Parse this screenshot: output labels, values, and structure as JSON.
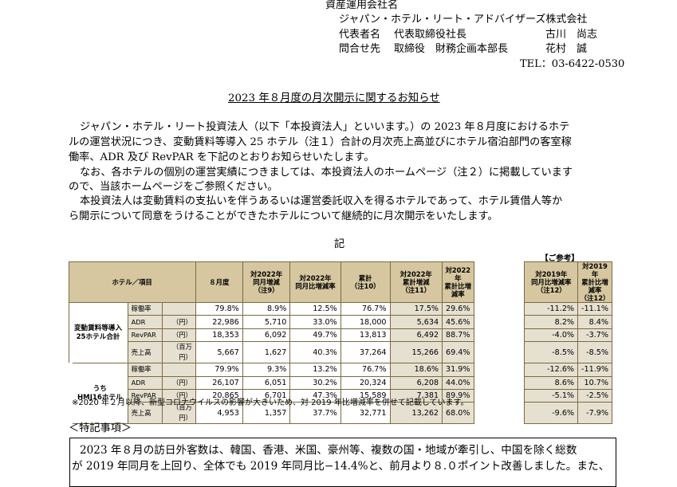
{
  "header": {
    "asset_manager_label": "資産運用会社名",
    "asset_manager_name": "ジャパン・ホテル・リート・アドバイザーズ株式会社",
    "representative_label": "代表者名",
    "representative_title": "代表取締役社長",
    "representative_name": "古川　尚志",
    "contact_label": "問合せ先",
    "contact_title": "取締役　財務企画本部長",
    "contact_name": "花村　誠",
    "tel": "TEL：03-6422-0530"
  },
  "title": "2023 年８月度の月次開示に関するお知らせ",
  "paragraphs": {
    "p1_line1": "ジャパン・ホテル・リート投資法人（以下「本投資法人」といいます。）の 2023 年８月度におけるホテ",
    "p1_line2": "ルの運営状況につき、変動賃料等導入 25 ホテル（注１）合計の月次売上高並びにホテル宿泊部門の客室稼",
    "p1_line3": "働率、ADR 及び RevPAR を下記のとおりお知らせいたします。",
    "p2_line1": "なお、各ホテルの個別の運営実績につきましては、本投資法人のホームページ（注２）に掲載しています",
    "p2_line2": "ので、当該ホームページをご参照ください。",
    "p3_line1": "本投資法人は変動賃料の支払いを伴うあるいは運営委託収入を得るホテルであって、ホテル賃借人等か",
    "p3_line2": "ら開示について同意をうけることができたホテルについて継続的に月次開示をいたします。"
  },
  "ki": "記",
  "reference_label": "【ご参考】",
  "table": {
    "headers": {
      "hotel_item": "ホテル／項目",
      "month": "８月度",
      "yoy_change": "対2022年\n同月増減\n（注9）",
      "yoy_rate": "対2022年\n同月比増減率",
      "cumulative": "累計\n（注10）",
      "cum_change": "対2022年\n累計増減\n（注11）",
      "cum_rate": "対2022年\n累計比増減率",
      "vs2019_month": "対2019年\n同月比増減率\n（注12）",
      "vs2019_cum": "対2019年\n累計比増減率\n（注12）"
    },
    "group1": "変動賃料等導入\n25ホテル合計",
    "group2": "うち\nHMJ16ホテル",
    "rows1": [
      {
        "item": "稼働率",
        "unit": "",
        "month": "79.8%",
        "yoy": "8.9%",
        "yoy_rate": "12.5%",
        "cum": "76.7%",
        "cum_chg": "17.5%",
        "cum_rate": "29.6%",
        "m19": "-11.2%",
        "c19": "-11.1%"
      },
      {
        "item": "ADR",
        "unit": "（円）",
        "month": "22,986",
        "yoy": "5,710",
        "yoy_rate": "33.0%",
        "cum": "18,000",
        "cum_chg": "5,634",
        "cum_rate": "45.6%",
        "m19": "8.2%",
        "c19": "8.4%"
      },
      {
        "item": "RevPAR",
        "unit": "（円）",
        "month": "18,353",
        "yoy": "6,092",
        "yoy_rate": "49.7%",
        "cum": "13,813",
        "cum_chg": "6,492",
        "cum_rate": "88.7%",
        "m19": "-4.0%",
        "c19": "-3.7%"
      },
      {
        "item": "売上高",
        "unit": "（百万円）",
        "month": "5,667",
        "yoy": "1,627",
        "yoy_rate": "40.3%",
        "cum": "37,264",
        "cum_chg": "15,266",
        "cum_rate": "69.4%",
        "m19": "-8.5%",
        "c19": "-8.5%"
      }
    ],
    "rows2": [
      {
        "item": "稼働率",
        "unit": "",
        "month": "79.9%",
        "yoy": "9.3%",
        "yoy_rate": "13.2%",
        "cum": "76.7%",
        "cum_chg": "18.6%",
        "cum_rate": "31.9%",
        "m19": "-12.6%",
        "c19": "-11.9%"
      },
      {
        "item": "ADR",
        "unit": "（円）",
        "month": "26,107",
        "yoy": "6,051",
        "yoy_rate": "30.2%",
        "cum": "20,324",
        "cum_chg": "6,208",
        "cum_rate": "44.0%",
        "m19": "8.6%",
        "c19": "10.7%"
      },
      {
        "item": "RevPAR",
        "unit": "（円）",
        "month": "20,865",
        "yoy": "6,701",
        "yoy_rate": "47.3%",
        "cum": "15,589",
        "cum_chg": "7,381",
        "cum_rate": "89.9%",
        "m19": "-5.1%",
        "c19": "-2.5%"
      },
      {
        "item": "売上高",
        "unit": "（百万円）",
        "month": "4,953",
        "yoy": "1,357",
        "yoy_rate": "37.7%",
        "cum": "32,771",
        "cum_chg": "13,262",
        "cum_rate": "68.0%",
        "m19": "-9.6%",
        "c19": "-7.9%"
      }
    ]
  },
  "table_note": "※2020 年２月以降、新型コロナウイルスの影響が大きいため、対 2019 年比増減率を併せて記載しています。",
  "special_heading": "＜特記事項＞",
  "special": {
    "line1": "2023 年８月の訪日外客数は、韓国、香港、米国、豪州等、複数の国・地域が牽引し、中国を除く総数",
    "line2": "が 2019 年同月を上回り、全体でも 2019 年同月比−14.4%と、前月より８.０ポイント改善しました。また、"
  }
}
